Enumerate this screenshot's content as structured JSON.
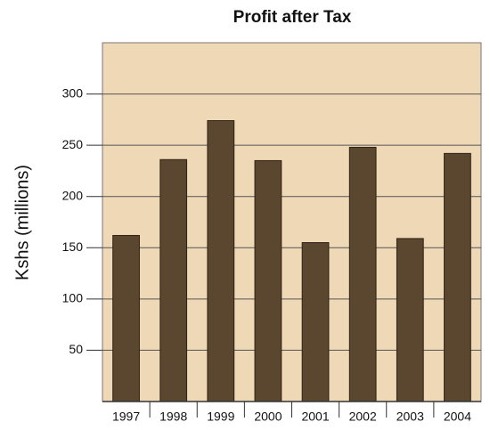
{
  "chart_data": {
    "type": "bar",
    "title": "Profit after Tax",
    "y_label": "Kshs (millions)",
    "categories": [
      "1997",
      "1998",
      "1999",
      "2000",
      "2001",
      "2002",
      "2003",
      "2004"
    ],
    "values": [
      162,
      236,
      274,
      235,
      155,
      248,
      159,
      242
    ],
    "color": "#5b4630",
    "ylim": [
      0,
      350
    ],
    "yticks": [
      50,
      100,
      150,
      200,
      250,
      300
    ],
    "grid": true
  }
}
